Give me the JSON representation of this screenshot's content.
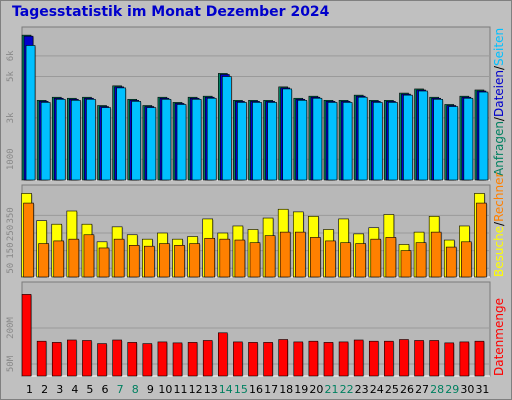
{
  "title": "Tagesstatistik im Monat Dezember 2024",
  "colors": {
    "background": "#c0c0c0",
    "plot_bg": "#b0b0b0",
    "grid": "#9a9a9a",
    "title": "#0000cc",
    "anfragen": "#008060",
    "dateien": "#0000cc",
    "seiten": "#00c0ff",
    "besuche": "#ffff00",
    "rechner": "#ff8000",
    "datenmenge": "#ff0000"
  },
  "legend": {
    "panel1": [
      {
        "text": "Anfragen",
        "color": "#008060"
      },
      {
        "text": "/",
        "color": "#000000"
      },
      {
        "text": "Dateien",
        "color": "#0000cc"
      },
      {
        "text": "/",
        "color": "#000000"
      },
      {
        "text": "Seiten",
        "color": "#00c0ff"
      }
    ],
    "panel2": [
      {
        "text": "Besuche",
        "color": "#ffff00"
      },
      {
        "text": "/",
        "color": "#000000"
      },
      {
        "text": "Rechner",
        "color": "#ff8000"
      }
    ],
    "panel3": [
      {
        "text": "Datenmenge",
        "color": "#ff0000"
      }
    ]
  },
  "chart_data": [
    {
      "type": "bar",
      "panel": "requests",
      "categories": [
        "1",
        "2",
        "3",
        "4",
        "5",
        "6",
        "7",
        "8",
        "9",
        "10",
        "11",
        "12",
        "13",
        "14",
        "15",
        "16",
        "17",
        "18",
        "19",
        "20",
        "21",
        "22",
        "23",
        "24",
        "25",
        "26",
        "27",
        "28",
        "29",
        "30",
        "31"
      ],
      "weekend_days": [
        "7",
        "8",
        "14",
        "15",
        "21",
        "22",
        "28",
        "29"
      ],
      "ylim": [
        0,
        7200
      ],
      "ticks": [
        {
          "value": 1000,
          "label": "1000"
        },
        {
          "value": 3000,
          "label": "3k"
        },
        {
          "value": 5000,
          "label": "5k"
        },
        {
          "value": 6000,
          "label": "6k"
        }
      ],
      "series": [
        {
          "name": "Anfragen",
          "color": "#008060",
          "values": [
            7000,
            3850,
            4000,
            3950,
            4000,
            3600,
            4550,
            3900,
            3600,
            4000,
            3750,
            4000,
            4050,
            5150,
            3850,
            3850,
            3850,
            4500,
            3950,
            4050,
            3850,
            3850,
            4100,
            3850,
            3850,
            4200,
            4400,
            4000,
            3650,
            4050,
            4350
          ]
        },
        {
          "name": "Dateien",
          "color": "#0000cc",
          "values": [
            6950,
            3800,
            3950,
            3900,
            3950,
            3550,
            4500,
            3850,
            3550,
            3950,
            3700,
            3950,
            4000,
            5100,
            3800,
            3800,
            3800,
            4450,
            3900,
            4000,
            3800,
            3800,
            4050,
            3800,
            3800,
            4150,
            4350,
            3950,
            3600,
            4000,
            4300
          ]
        },
        {
          "name": "Seiten",
          "color": "#00c0ff",
          "values": [
            6500,
            3750,
            3900,
            3850,
            3900,
            3500,
            4450,
            3800,
            3500,
            3900,
            3650,
            3900,
            3950,
            5000,
            3750,
            3750,
            3750,
            4400,
            3850,
            3950,
            3750,
            3750,
            4000,
            3750,
            3750,
            4100,
            4300,
            3900,
            3550,
            3950,
            4250
          ]
        }
      ]
    },
    {
      "type": "bar",
      "panel": "visits",
      "categories": [
        "1",
        "2",
        "3",
        "4",
        "5",
        "6",
        "7",
        "8",
        "9",
        "10",
        "11",
        "12",
        "13",
        "14",
        "15",
        "16",
        "17",
        "18",
        "19",
        "20",
        "21",
        "22",
        "23",
        "24",
        "25",
        "26",
        "27",
        "28",
        "29",
        "30",
        "31"
      ],
      "ylim": [
        0,
        500
      ],
      "ticks": [
        {
          "value": 50,
          "label": "50"
        },
        {
          "value": 150,
          "label": "150"
        },
        {
          "value": 250,
          "label": "250"
        },
        {
          "value": 350,
          "label": "350"
        }
      ],
      "series": [
        {
          "name": "Besuche",
          "color": "#ffff00",
          "values": [
            475,
            320,
            300,
            375,
            300,
            200,
            285,
            240,
            215,
            250,
            215,
            230,
            330,
            250,
            290,
            270,
            335,
            385,
            370,
            345,
            270,
            330,
            245,
            280,
            355,
            185,
            255,
            345,
            210,
            290,
            475
          ]
        },
        {
          "name": "Rechner",
          "color": "#ff8000",
          "values": [
            420,
            190,
            205,
            215,
            240,
            165,
            215,
            180,
            175,
            190,
            180,
            190,
            220,
            215,
            210,
            195,
            235,
            255,
            255,
            225,
            205,
            195,
            190,
            215,
            225,
            150,
            195,
            255,
            170,
            200,
            420
          ]
        }
      ]
    },
    {
      "type": "bar",
      "panel": "volume",
      "categories": [
        "1",
        "2",
        "3",
        "4",
        "5",
        "6",
        "7",
        "8",
        "9",
        "10",
        "11",
        "12",
        "13",
        "14",
        "15",
        "16",
        "17",
        "18",
        "19",
        "20",
        "21",
        "22",
        "23",
        "24",
        "25",
        "26",
        "27",
        "28",
        "29",
        "30",
        "31"
      ],
      "ylim": [
        0,
        375
      ],
      "ticks": [
        {
          "value": 50,
          "label": "50M"
        },
        {
          "value": 200,
          "label": "200M"
        }
      ],
      "series": [
        {
          "name": "Datenmenge",
          "color": "#ff0000",
          "values": [
            340,
            145,
            140,
            150,
            148,
            135,
            150,
            140,
            135,
            142,
            138,
            140,
            148,
            180,
            142,
            140,
            140,
            152,
            142,
            145,
            140,
            142,
            150,
            145,
            145,
            152,
            148,
            148,
            138,
            142,
            145
          ]
        }
      ]
    }
  ]
}
